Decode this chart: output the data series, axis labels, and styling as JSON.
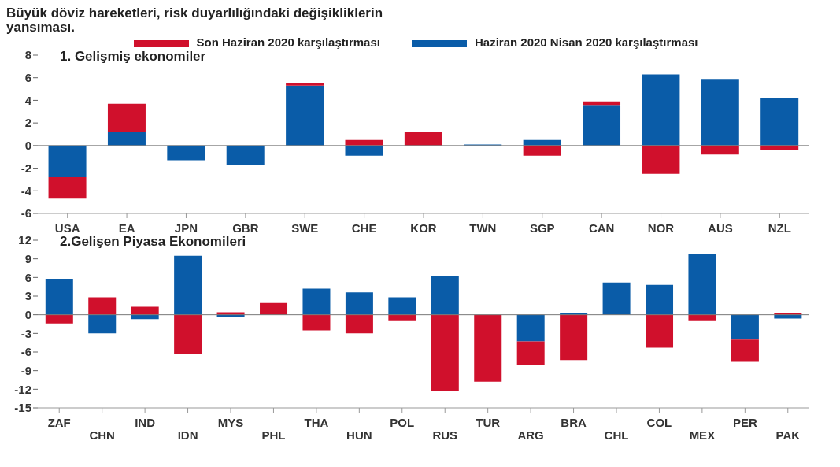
{
  "chart_data": [
    {
      "type": "bar",
      "title": "Büyük döviz hareketleri, risk duyarlılığındaki değişikliklerin yansıması.",
      "subtitle": "1. Gelişmiş ekonomiler",
      "stacked": true,
      "legend": "top",
      "grid": false,
      "categories": [
        "USA",
        "EA",
        "JPN",
        "GBR",
        "SWE",
        "CHE",
        "KOR",
        "TWN",
        "SGP",
        "CAN",
        "NOR",
        "AUS",
        "NZL"
      ],
      "series": [
        {
          "name": "Haziran 2020  Nisan 2020 karşılaştırması",
          "color": "#0a5ca8",
          "values": [
            -2.8,
            1.2,
            -1.3,
            -1.7,
            5.3,
            -0.9,
            0,
            0.1,
            0.5,
            3.6,
            6.3,
            5.9,
            4.2
          ]
        },
        {
          "name": "Son Haziran 2020 karşılaştırması",
          "color": "#d0102c",
          "values": [
            -1.9,
            2.5,
            0,
            0,
            0.2,
            0.5,
            1.2,
            0,
            -0.9,
            0.3,
            -2.5,
            -0.8,
            -0.4
          ]
        }
      ],
      "ref_lines": [
        {
          "axis": "y",
          "value": 0
        }
      ],
      "ylim": [
        -6,
        8
      ],
      "yticks": [
        -6,
        -4,
        -2,
        0,
        2,
        4,
        6,
        8
      ]
    },
    {
      "type": "bar",
      "title": "2.Gelişen Piyasa Ekonomileri",
      "stacked": true,
      "grid": false,
      "categories": [
        "ZAF",
        "CHN",
        "IND",
        "IDN",
        "MYS",
        "PHL",
        "THA",
        "HUN",
        "POL",
        "RUS",
        "TUR",
        "ARG",
        "BRA",
        "CHL",
        "COL",
        "MEX",
        "PER",
        "PAK"
      ],
      "series": [
        {
          "color": "#0a5ca8",
          "values": [
            5.8,
            -3.0,
            -0.7,
            9.5,
            -0.4,
            0,
            4.2,
            3.6,
            2.8,
            6.2,
            0,
            -4.3,
            0.3,
            5.2,
            4.8,
            9.8,
            -4.0,
            -0.6
          ]
        },
        {
          "color": "#d0102c",
          "values": [
            -1.4,
            2.8,
            1.3,
            -6.3,
            0.4,
            1.9,
            -2.5,
            -3.0,
            -0.9,
            -12.2,
            -10.8,
            -3.8,
            -7.3,
            0,
            -5.3,
            -0.9,
            -3.6,
            0.2
          ]
        }
      ],
      "ref_lines": [
        {
          "axis": "y",
          "value": 0
        }
      ],
      "ylim": [
        -15,
        12
      ],
      "yticks": [
        -15,
        -12,
        -9,
        -6,
        -3,
        0,
        3,
        6,
        9,
        12
      ]
    }
  ]
}
